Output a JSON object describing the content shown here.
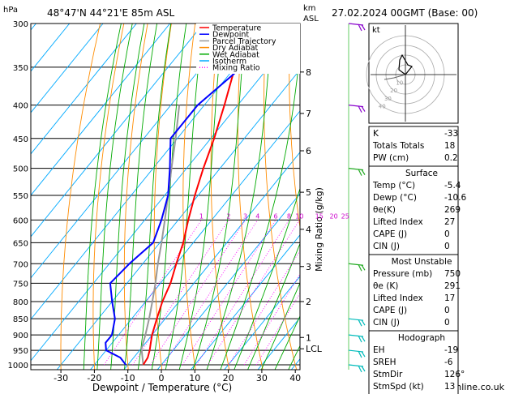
{
  "header": {
    "pressure_unit": "hPa",
    "location": "48°47'N 44°21'E 85m ASL",
    "height_unit_top": "km",
    "height_unit_bottom": "ASL",
    "datetime": "27.02.2024 00GMT (Base: 00)"
  },
  "footer": {
    "copyright": "© weatheronline.co.uk"
  },
  "legend": [
    {
      "label": "Temperature",
      "color": "#ff0000",
      "dash": ""
    },
    {
      "label": "Dewpoint",
      "color": "#0000ff",
      "dash": ""
    },
    {
      "label": "Parcel Trajectory",
      "color": "#999999",
      "dash": ""
    },
    {
      "label": "Dry Adiabat",
      "color": "#ff8c00",
      "dash": ""
    },
    {
      "label": "Wet Adiabat",
      "color": "#00aa00",
      "dash": ""
    },
    {
      "label": "Isotherm",
      "color": "#00aaff",
      "dash": ""
    },
    {
      "label": "Mixing Ratio",
      "color": "#ff00ff",
      "dash": "1,2"
    }
  ],
  "chart_data": {
    "type": "skew-t",
    "xlabel": "Dewpoint / Temperature (°C)",
    "ylabel": "Mixing Ratio (g/kg)",
    "x_ticks": [
      "-30",
      "-20",
      "-10",
      "0",
      "10",
      "20",
      "30",
      "40"
    ],
    "pressure_levels": [
      300,
      350,
      400,
      450,
      500,
      550,
      600,
      650,
      700,
      750,
      800,
      850,
      900,
      950,
      1000
    ],
    "km_ticks": [
      {
        "label": "8",
        "p": 356
      },
      {
        "label": "7",
        "p": 412
      },
      {
        "label": "6",
        "p": 470
      },
      {
        "label": "5",
        "p": 544
      },
      {
        "label": "4",
        "p": 620
      },
      {
        "label": "3",
        "p": 707
      },
      {
        "label": "2",
        "p": 800
      },
      {
        "label": "1",
        "p": 908
      },
      {
        "label": "LCL",
        "p": 945
      }
    ],
    "mixing_ratio_labels": [
      "1",
      "2",
      "3",
      "4",
      "6",
      "8",
      "10",
      "15",
      "20",
      "25"
    ],
    "temperature_profile": [
      {
        "p": 1000,
        "t": -5.4
      },
      {
        "p": 975,
        "t": -5.8
      },
      {
        "p": 950,
        "t": -7
      },
      {
        "p": 925,
        "t": -8.5
      },
      {
        "p": 900,
        "t": -10
      },
      {
        "p": 850,
        "t": -12.5
      },
      {
        "p": 800,
        "t": -15
      },
      {
        "p": 750,
        "t": -17
      },
      {
        "p": 700,
        "t": -20
      },
      {
        "p": 650,
        "t": -23
      },
      {
        "p": 600,
        "t": -27
      },
      {
        "p": 550,
        "t": -31
      },
      {
        "p": 500,
        "t": -35
      },
      {
        "p": 450,
        "t": -39
      },
      {
        "p": 400,
        "t": -44
      },
      {
        "p": 350,
        "t": -50
      },
      {
        "p": 300,
        "t": -56
      }
    ],
    "dewpoint_profile": [
      {
        "p": 1000,
        "t": -10.6
      },
      {
        "p": 975,
        "t": -14
      },
      {
        "p": 950,
        "t": -20
      },
      {
        "p": 925,
        "t": -22
      },
      {
        "p": 900,
        "t": -22
      },
      {
        "p": 850,
        "t": -25
      },
      {
        "p": 800,
        "t": -30
      },
      {
        "p": 750,
        "t": -35
      },
      {
        "p": 700,
        "t": -34
      },
      {
        "p": 650,
        "t": -32
      },
      {
        "p": 600,
        "t": -35
      },
      {
        "p": 550,
        "t": -39
      },
      {
        "p": 500,
        "t": -45
      },
      {
        "p": 450,
        "t": -52
      },
      {
        "p": 400,
        "t": -52
      },
      {
        "p": 350,
        "t": -48
      },
      {
        "p": 300,
        "t": -57
      }
    ],
    "parcel_trajectory": [
      {
        "p": 1000,
        "t": -5.4
      },
      {
        "p": 945,
        "t": -9.8
      },
      {
        "p": 900,
        "t": -12
      },
      {
        "p": 850,
        "t": -14.8
      },
      {
        "p": 800,
        "t": -18
      },
      {
        "p": 750,
        "t": -21.5
      },
      {
        "p": 700,
        "t": -25.5
      },
      {
        "p": 650,
        "t": -29.5
      },
      {
        "p": 600,
        "t": -34
      },
      {
        "p": 550,
        "t": -39
      },
      {
        "p": 500,
        "t": -44.5
      },
      {
        "p": 450,
        "t": -50.5
      },
      {
        "p": 400,
        "t": -57.5
      }
    ],
    "wind_barb_levels": [
      300,
      400,
      500,
      700,
      850,
      900,
      950,
      1000
    ]
  },
  "hodograph": {
    "label": "kt",
    "ring_labels": [
      "10",
      "20",
      "30",
      "40"
    ]
  },
  "indices_table": {
    "rows": [
      {
        "label": "K",
        "value": "-33"
      },
      {
        "label": "Totals Totals",
        "value": "18"
      },
      {
        "label": "PW (cm)",
        "value": "0.2"
      }
    ]
  },
  "surface_table": {
    "title": "Surface",
    "rows": [
      {
        "label": "Temp (°C)",
        "value": "-5.4"
      },
      {
        "label": "Dewp (°C)",
        "value": "-10.6"
      },
      {
        "label": "θe(K)",
        "value": "269"
      },
      {
        "label": "Lifted Index",
        "value": "27"
      },
      {
        "label": "CAPE (J)",
        "value": "0"
      },
      {
        "label": "CIN (J)",
        "value": "0"
      }
    ]
  },
  "unstable_table": {
    "title": "Most Unstable",
    "rows": [
      {
        "label": "Pressure (mb)",
        "value": "750"
      },
      {
        "label": "θe (K)",
        "value": "291"
      },
      {
        "label": "Lifted Index",
        "value": "17"
      },
      {
        "label": "CAPE (J)",
        "value": "0"
      },
      {
        "label": "CIN (J)",
        "value": "0"
      }
    ]
  },
  "hodograph_table": {
    "title": "Hodograph",
    "rows": [
      {
        "label": "EH",
        "value": "-19"
      },
      {
        "label": "SREH",
        "value": "-6"
      },
      {
        "label": "StmDir",
        "value": "126°"
      },
      {
        "label": "StmSpd (kt)",
        "value": "13"
      }
    ]
  }
}
